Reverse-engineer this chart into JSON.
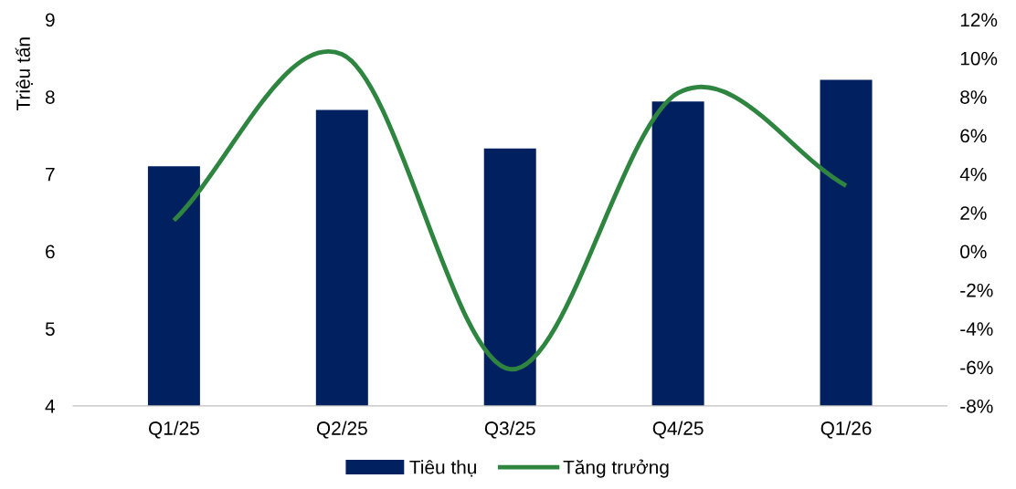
{
  "chart_data": {
    "type": "bar",
    "ylabel": "Triệu tấn",
    "categories": [
      "Q1/25",
      "Q2/25",
      "Q3/25",
      "Q4/25",
      "Q1/26"
    ],
    "series": [
      {
        "name": "Tiêu thụ",
        "color": "#002060",
        "values": [
          7.1,
          7.83,
          7.33,
          7.94,
          8.22
        ]
      },
      {
        "name": "Tăng trưởng",
        "type": "line",
        "axis": "y2",
        "color": "#2e8540",
        "values": [
          1.6,
          10.2,
          -6.1,
          8.2,
          3.4
        ]
      }
    ],
    "ylim": [
      4,
      9
    ],
    "yticks": [
      4,
      5,
      6,
      7,
      8,
      9
    ],
    "y2lim": [
      -8,
      12
    ],
    "y2ticks": [
      {
        "value": -8,
        "label": "-8%"
      },
      {
        "value": -6,
        "label": "-6%"
      },
      {
        "value": -4,
        "label": "-4%"
      },
      {
        "value": -2,
        "label": "-2%"
      },
      {
        "value": 0,
        "label": "0%"
      },
      {
        "value": 2,
        "label": "2%"
      },
      {
        "value": 4,
        "label": "4%"
      },
      {
        "value": 6,
        "label": "6%"
      },
      {
        "value": 8,
        "label": "8%"
      },
      {
        "value": 10,
        "label": "10%"
      },
      {
        "value": 12,
        "label": "12%"
      }
    ],
    "grid": false,
    "legend": "bottom",
    "line_style": "solid",
    "marker": "none"
  }
}
